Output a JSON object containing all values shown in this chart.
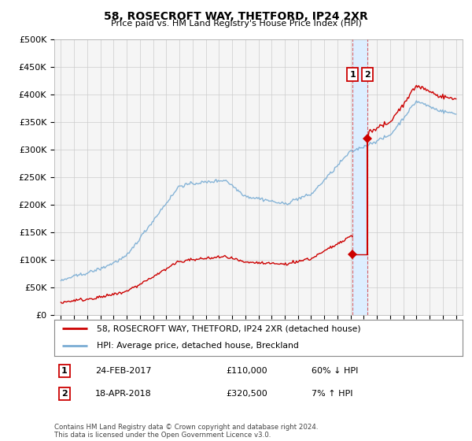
{
  "title": "58, ROSECROFT WAY, THETFORD, IP24 2XR",
  "subtitle": "Price paid vs. HM Land Registry's House Price Index (HPI)",
  "ylabel_ticks": [
    "£0",
    "£50K",
    "£100K",
    "£150K",
    "£200K",
    "£250K",
    "£300K",
    "£350K",
    "£400K",
    "£450K",
    "£500K"
  ],
  "ytick_values": [
    0,
    50000,
    100000,
    150000,
    200000,
    250000,
    300000,
    350000,
    400000,
    450000,
    500000
  ],
  "xlim_start": 1994.5,
  "xlim_end": 2025.5,
  "ylim": [
    0,
    500000
  ],
  "transaction1_date": 2017.15,
  "transaction1_price": 110000,
  "transaction2_date": 2018.3,
  "transaction2_price": 320500,
  "legend_line1": "58, ROSECROFT WAY, THETFORD, IP24 2XR (detached house)",
  "legend_line2": "HPI: Average price, detached house, Breckland",
  "footer": "Contains HM Land Registry data © Crown copyright and database right 2024.\nThis data is licensed under the Open Government Licence v3.0.",
  "line_red_color": "#cc0000",
  "line_blue_color": "#7aadd4",
  "highlight_color": "#ddeeff",
  "box_color": "#cc0000",
  "grid_color": "#cccccc",
  "bg_color": "#f5f5f5"
}
